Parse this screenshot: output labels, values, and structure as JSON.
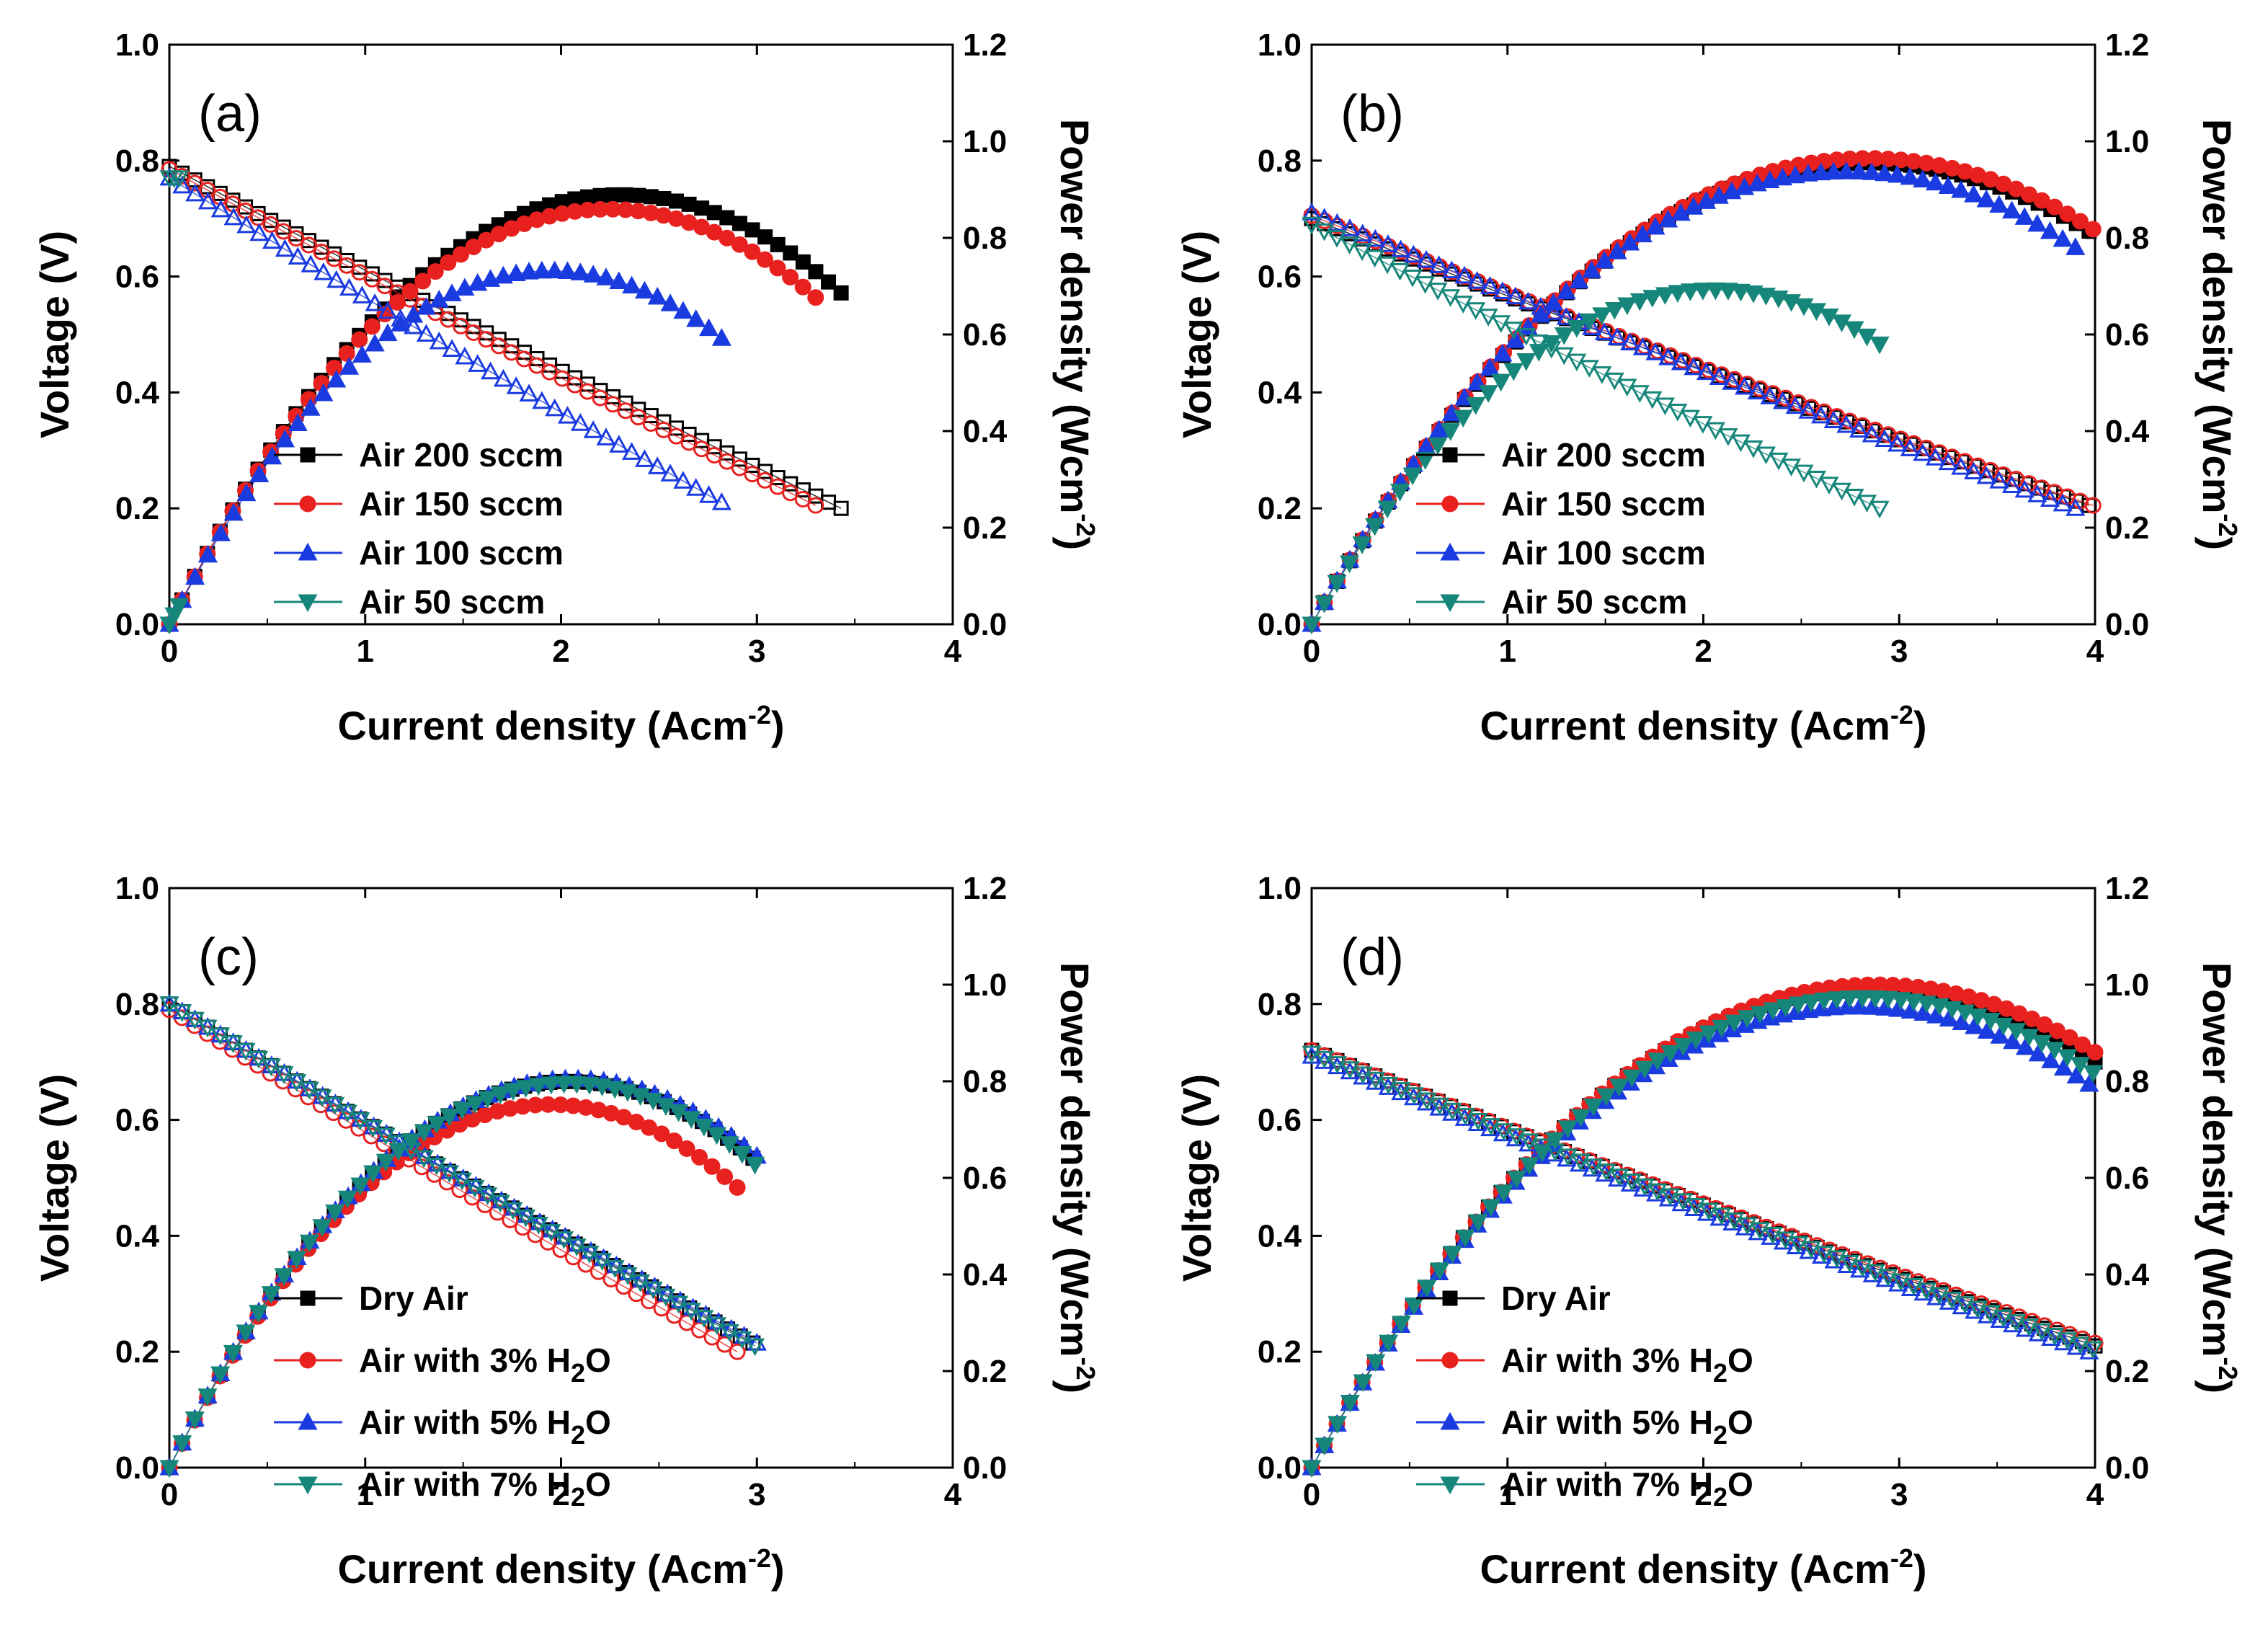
{
  "figure": {
    "panels": [
      "a",
      "b",
      "c",
      "d"
    ]
  },
  "chart_data": [
    {
      "panel": "a",
      "label": "(a)",
      "type": "line",
      "xlabel": "Current density (Acm-2)",
      "ylabel": "Voltage (V)",
      "y2label": "Power density (Wcm-2)",
      "xlim": [
        0,
        4
      ],
      "ylim": [
        0,
        1.0
      ],
      "y2lim": [
        0,
        1.2
      ],
      "xticks": [
        "0",
        "1",
        "2",
        "3",
        "4"
      ],
      "yticks": [
        "0.0",
        "0.2",
        "0.4",
        "0.6",
        "0.8",
        "1.0"
      ],
      "y2ticks": [
        "0.0",
        "0.2",
        "0.4",
        "0.6",
        "0.8",
        "1.0",
        "1.2"
      ],
      "legend": {
        "position": "lower-left"
      },
      "series": [
        {
          "name": "Air 200 sccm",
          "color": "#000000",
          "marker": "square",
          "v0": 0.79,
          "v1": 0.2,
          "imax": 3.43,
          "curv": 0.06
        },
        {
          "name": "Air 150 sccm",
          "color": "#e8211f",
          "marker": "circle",
          "v0": 0.785,
          "v1": 0.205,
          "imax": 3.3,
          "curv": 0.06
        },
        {
          "name": "Air 100 sccm",
          "color": "#1a3be0",
          "marker": "triangle-up",
          "v0": 0.77,
          "v1": 0.21,
          "imax": 2.82,
          "curv": 0.06
        },
        {
          "name": "Air 50 sccm",
          "color": "#17867a",
          "marker": "triangle-down",
          "v0": 0.77,
          "v1": 0.77,
          "imax": 0.05,
          "curv": 0
        }
      ]
    },
    {
      "panel": "b",
      "label": "(b)",
      "type": "line",
      "xlabel": "Current density (Acm-2)",
      "ylabel": "Voltage (V)",
      "y2label": "Power density (Wcm-2)",
      "xlim": [
        0,
        4
      ],
      "ylim": [
        0,
        1.0
      ],
      "y2lim": [
        0,
        1.2
      ],
      "xticks": [
        "0",
        "1",
        "2",
        "3",
        "4"
      ],
      "yticks": [
        "0.0",
        "0.2",
        "0.4",
        "0.6",
        "0.8",
        "1.0"
      ],
      "y2ticks": [
        "0.0",
        "0.2",
        "0.4",
        "0.6",
        "0.8",
        "1.0",
        "1.2"
      ],
      "legend": {
        "position": "lower-left"
      },
      "series": [
        {
          "name": "Air 200 sccm",
          "color": "#000000",
          "marker": "square",
          "v0": 0.7,
          "v1": 0.205,
          "imax": 3.97,
          "curv": 0.08
        },
        {
          "name": "Air 150 sccm",
          "color": "#e8211f",
          "marker": "circle",
          "v0": 0.705,
          "v1": 0.205,
          "imax": 3.99,
          "curv": 0.08
        },
        {
          "name": "Air 100 sccm",
          "color": "#1a3be0",
          "marker": "triangle-up",
          "v0": 0.71,
          "v1": 0.2,
          "imax": 3.9,
          "curv": 0.08
        },
        {
          "name": "Air 50 sccm",
          "color": "#17867a",
          "marker": "triangle-down",
          "v0": 0.69,
          "v1": 0.2,
          "imax": 2.9,
          "curv": 0.05
        }
      ]
    },
    {
      "panel": "c",
      "label": "(c)",
      "type": "line",
      "xlabel": "Current density (Acm-2)",
      "ylabel": "Voltage (V)",
      "y2label": "Power density (Wcm-2)",
      "xlim": [
        0,
        4
      ],
      "ylim": [
        0,
        1.0
      ],
      "y2lim": [
        0,
        1.2
      ],
      "xticks": [
        "0",
        "1",
        "2",
        "3",
        "4"
      ],
      "yticks": [
        "0.0",
        "0.2",
        "0.4",
        "0.6",
        "0.8",
        "1.0"
      ],
      "y2ticks": [
        "0.0",
        "0.2",
        "0.4",
        "0.6",
        "0.8",
        "1.0",
        "1.2"
      ],
      "legend": {
        "position": "lower-left"
      },
      "series": [
        {
          "name": "Dry Air",
          "color": "#000000",
          "marker": "square",
          "v0": 0.8,
          "v1": 0.215,
          "imax": 2.98,
          "curv": 0.06
        },
        {
          "name": "Air with 3% H2O",
          "name_main": "Air with 3% H",
          "name_sub": "2",
          "name_end": "O",
          "color": "#e8211f",
          "marker": "circle",
          "v0": 0.79,
          "v1": 0.2,
          "imax": 2.9,
          "curv": 0.06
        },
        {
          "name": "Air with 5% H2O",
          "name_main": "Air with 5% H",
          "name_sub": "2",
          "name_end": "O",
          "color": "#1a3be0",
          "marker": "triangle-up",
          "v0": 0.8,
          "v1": 0.215,
          "imax": 3.0,
          "curv": 0.06
        },
        {
          "name": "Air with 7% H2O",
          "name_main": "Air with 7% H",
          "name_sub": "2",
          "name_end": "O",
          "color": "#17867a",
          "marker": "triangle-down",
          "v0": 0.8,
          "v1": 0.21,
          "imax": 2.99,
          "curv": 0.06
        }
      ]
    },
    {
      "panel": "d",
      "label": "(d)",
      "type": "line",
      "xlabel": "Current density (Acm-2)",
      "ylabel": "Voltage (V)",
      "y2label": "Power density (Wcm-2)",
      "xlim": [
        0,
        4
      ],
      "ylim": [
        0,
        1.0
      ],
      "y2lim": [
        0,
        1.2
      ],
      "xticks": [
        "0",
        "1",
        "2",
        "3",
        "4"
      ],
      "yticks": [
        "0.0",
        "0.2",
        "0.4",
        "0.6",
        "0.8",
        "1.0"
      ],
      "y2ticks": [
        "0.0",
        "0.2",
        "0.4",
        "0.6",
        "0.8",
        "1.0",
        "1.2"
      ],
      "legend": {
        "position": "lower-left"
      },
      "series": [
        {
          "name": "Dry Air",
          "color": "#000000",
          "marker": "square",
          "v0": 0.72,
          "v1": 0.21,
          "imax": 4.0,
          "curv": 0.08
        },
        {
          "name": "Air with 3% H2O",
          "name_main": "Air with 3% H",
          "name_sub": "2",
          "name_end": "O",
          "color": "#e8211f",
          "marker": "circle",
          "v0": 0.72,
          "v1": 0.215,
          "imax": 4.0,
          "curv": 0.08
        },
        {
          "name": "Air with 5% H2O",
          "name_main": "Air with 5% H",
          "name_sub": "2",
          "name_end": "O",
          "color": "#1a3be0",
          "marker": "triangle-up",
          "v0": 0.71,
          "v1": 0.2,
          "imax": 3.97,
          "curv": 0.08
        },
        {
          "name": "Air with 7% H2O",
          "name_main": "Air with 7% H",
          "name_sub": "2",
          "name_end": "O",
          "color": "#17867a",
          "marker": "triangle-down",
          "v0": 0.715,
          "v1": 0.205,
          "imax": 3.99,
          "curv": 0.08
        }
      ]
    }
  ]
}
